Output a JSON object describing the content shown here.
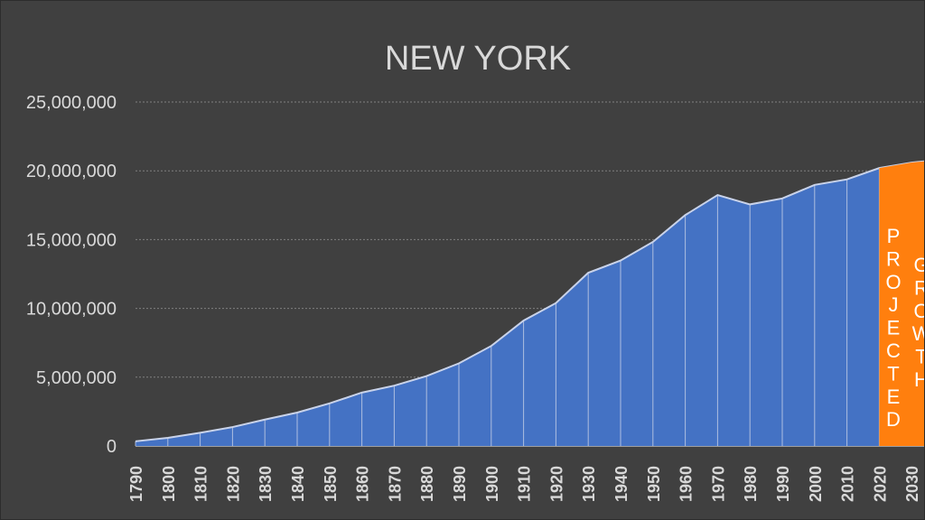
{
  "chart_data": {
    "type": "area",
    "title": "NEW YORK",
    "xlabel": "",
    "ylabel": "",
    "ylim": [
      0,
      25000000
    ],
    "y_ticks": [
      0,
      5000000,
      10000000,
      15000000,
      20000000,
      25000000
    ],
    "y_tick_labels": [
      "0",
      "5,000,000",
      "10,000,000",
      "15,000,000",
      "20,000,000",
      "25,000,000"
    ],
    "grid": true,
    "legend": "none",
    "categories": [
      "1790",
      "1800",
      "1810",
      "1820",
      "1830",
      "1840",
      "1850",
      "1860",
      "1870",
      "1880",
      "1890",
      "1900",
      "1910",
      "1920",
      "1930",
      "1940",
      "1950",
      "1960",
      "1970",
      "1980",
      "1990",
      "2000",
      "2010",
      "2020",
      "2030"
    ],
    "series": [
      {
        "values": [
          340120,
          589051,
          959049,
          1372812,
          1918608,
          2428921,
          3097394,
          3880735,
          4382759,
          5082871,
          6003174,
          7268894,
          9113614,
          10385227,
          12588066,
          13479142,
          14830192,
          16782304,
          18236967,
          17558072,
          17990455,
          18976457,
          19378102,
          20201249,
          20600000
        ],
        "color": "#4472c4"
      }
    ],
    "projected": {
      "from": "2020",
      "extends_beyond": 20700000,
      "color": "#ff7f0e",
      "labels": [
        "PROJECTED",
        "GROWTH"
      ]
    }
  },
  "colors": {
    "background": "#404040",
    "area_fill": "#4472c4",
    "projected_fill": "#ff7f0e",
    "text": "#d9d9d9",
    "gridline": "#7f7f7f"
  }
}
